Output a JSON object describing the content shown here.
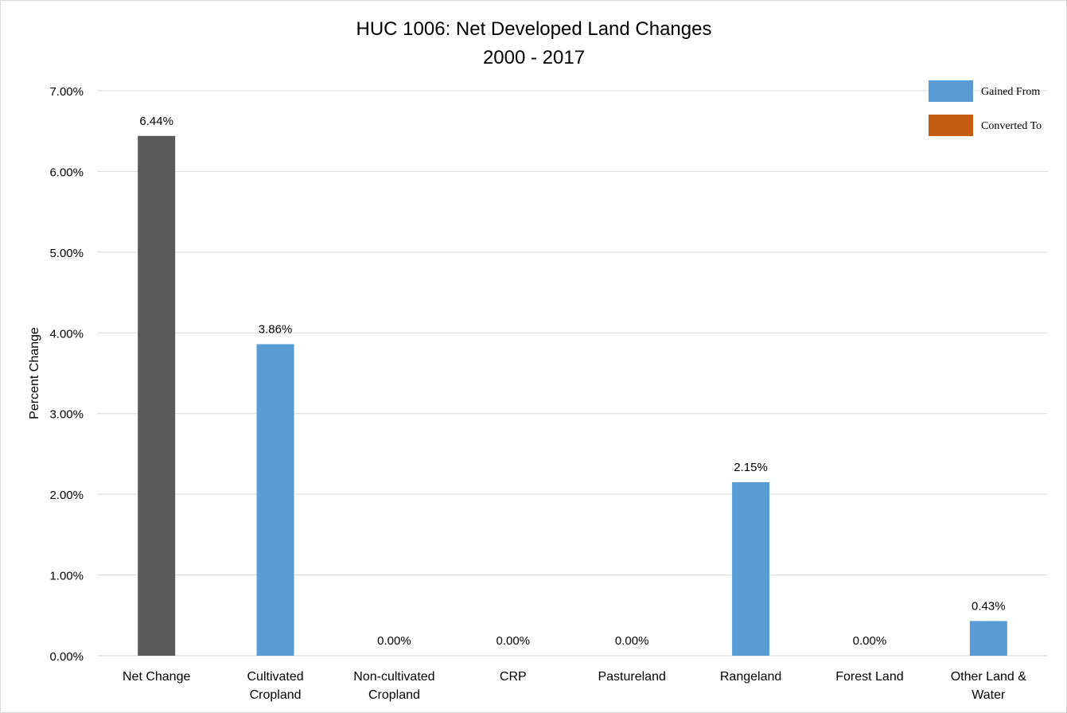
{
  "chart_data": {
    "type": "bar",
    "title": "HUC 1006: Net Developed Land Changes",
    "subtitle": "2000 - 2017",
    "ylabel": "Percent Change",
    "xlabel": "",
    "ylim": [
      0,
      7
    ],
    "yticks": [
      0,
      1,
      2,
      3,
      4,
      5,
      6,
      7
    ],
    "ytick_labels": [
      "0.00%",
      "1.00%",
      "2.00%",
      "3.00%",
      "4.00%",
      "5.00%",
      "6.00%",
      "7.00%"
    ],
    "grid": true,
    "legend_position": "top-right",
    "categories": [
      [
        "Net Change"
      ],
      [
        "Cultivated",
        "Cropland"
      ],
      [
        "Non-cultivated",
        "Cropland"
      ],
      [
        "CRP"
      ],
      [
        "Pastureland"
      ],
      [
        "Rangeland"
      ],
      [
        "Forest Land"
      ],
      [
        "Other Land &",
        "Water"
      ]
    ],
    "values": [
      6.44,
      3.86,
      0.0,
      0.0,
      0.0,
      2.15,
      0.0,
      0.43
    ],
    "value_labels": [
      "6.44%",
      "3.86%",
      "0.00%",
      "0.00%",
      "0.00%",
      "2.15%",
      "0.00%",
      "0.43%"
    ],
    "bar_series": [
      "net",
      "gained",
      "gained",
      "gained",
      "gained",
      "gained",
      "gained",
      "gained"
    ],
    "legend": [
      {
        "key": "gained",
        "name": "Gained From",
        "color": "#5b9bd5"
      },
      {
        "key": "converted",
        "name": "Converted To",
        "color": "#c55a11"
      }
    ],
    "net_color": "#595959"
  }
}
